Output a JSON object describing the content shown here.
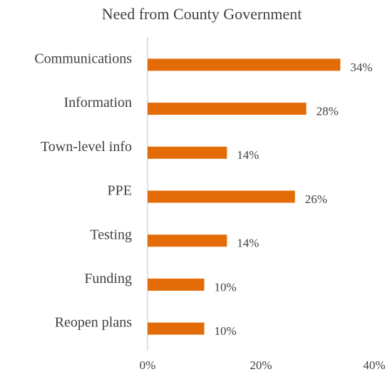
{
  "chart_data": {
    "type": "bar",
    "orientation": "horizontal",
    "title": "Need from County Government",
    "categories": [
      "Communications",
      "Information",
      "Town-level info",
      "PPE",
      "Testing",
      "Funding",
      "Reopen plans"
    ],
    "values": [
      34,
      28,
      14,
      26,
      14,
      10,
      10
    ],
    "value_labels": [
      "34%",
      "28%",
      "14%",
      "26%",
      "14%",
      "10%",
      "10%"
    ],
    "color": "#e36c09",
    "xlim": [
      0,
      40
    ],
    "xticks": [
      {
        "value": 0,
        "label": "0%"
      },
      {
        "value": 20,
        "label": "20%"
      },
      {
        "value": 40,
        "label": "40%"
      }
    ],
    "grid": false
  }
}
